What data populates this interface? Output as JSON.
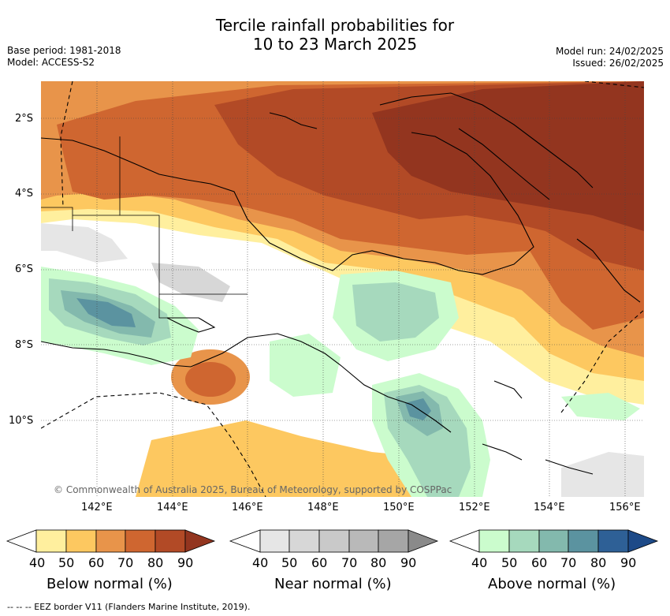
{
  "title": {
    "line1": "Tercile rainfall probabilities for",
    "line2": "10 to 23 March 2025"
  },
  "meta_left": {
    "base_period": "Base period: 1981-2018",
    "model": "Model: ACCESS-S2"
  },
  "meta_right": {
    "model_run": "Model run: 24/02/2025",
    "issued": "Issued: 26/02/2025"
  },
  "map": {
    "lat_ticks": [
      "2°S",
      "4°S",
      "6°S",
      "8°S",
      "10°S"
    ],
    "lon_ticks": [
      "142°E",
      "144°E",
      "146°E",
      "148°E",
      "150°E",
      "152°E",
      "154°E",
      "156°E"
    ],
    "copyright": "© Commonwealth of Australia 2025, Bureau of Meteorology, supported by COSPPac"
  },
  "colorbars": [
    {
      "title": "Below normal (%)",
      "labels": [
        "40",
        "50",
        "60",
        "70",
        "80",
        "90"
      ],
      "colors": [
        "#ffef9e",
        "#fdc860",
        "#e8944a",
        "#cf6630",
        "#b24a26",
        "#93351f"
      ]
    },
    {
      "title": "Near normal (%)",
      "labels": [
        "40",
        "50",
        "60",
        "70",
        "80",
        "90"
      ],
      "colors": [
        "#e6e6e6",
        "#d7d7d7",
        "#c9c9c9",
        "#b9b9b9",
        "#a6a6a6",
        "#8a8a8a"
      ]
    },
    {
      "title": "Above normal (%)",
      "labels": [
        "40",
        "50",
        "60",
        "70",
        "80",
        "90"
      ],
      "colors": [
        "#cbfccd",
        "#a6d9bd",
        "#83b9ad",
        "#5b93a0",
        "#2e6096",
        "#1d4a88"
      ]
    }
  ],
  "footer": "--  --  -- EEZ border V11 (Flanders Marine Institute, 2019)."
}
